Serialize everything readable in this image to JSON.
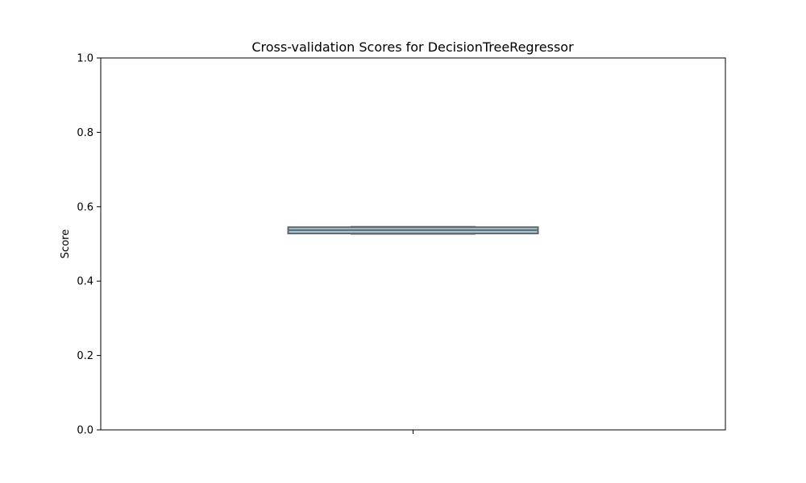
{
  "chart_data": {
    "type": "box",
    "title": "Cross-validation Scores for DecisionTreeRegressor",
    "xlabel": "",
    "ylabel": "Score",
    "ylim": [
      0,
      1
    ],
    "yticks": [
      "0.0",
      "0.2",
      "0.4",
      "0.6",
      "0.8",
      "1.0"
    ],
    "grid": false,
    "series": [
      {
        "min": 0.527,
        "q1": 0.528,
        "median": 0.537,
        "q3": 0.545,
        "max": 0.546
      }
    ],
    "colors": {
      "box_fill": "#9ecae1",
      "box_edge": "#666666",
      "axes": "#000000"
    }
  }
}
